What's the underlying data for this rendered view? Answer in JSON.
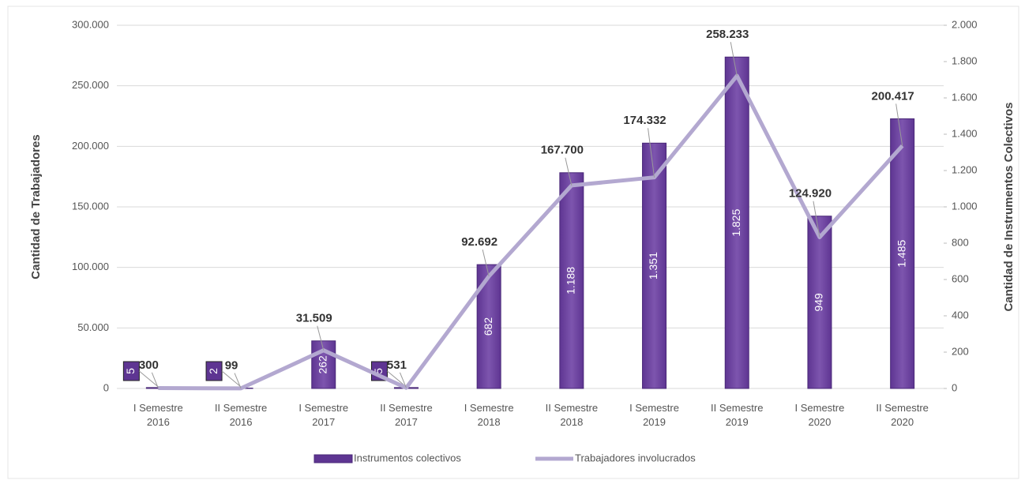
{
  "chart_data": {
    "type": "bar-line",
    "categories": [
      "I Semestre 2016",
      "II Semestre 2016",
      "I Semestre 2017",
      "II Semestre 2017",
      "I Semestre 2018",
      "II Semestre 2018",
      "I Semestre 2019",
      "II Semestre 2019",
      "I Semestre 2020",
      "II Semestre 2020"
    ],
    "series": [
      {
        "name": "Instrumentos colectivos",
        "type": "bar",
        "axis": "y2",
        "color": "#5e3592",
        "values": [
          5,
          2,
          262,
          5,
          682,
          1188,
          1351,
          1825,
          949,
          1485
        ],
        "value_labels": [
          "5",
          "2",
          "262",
          "5",
          "682",
          "1.188",
          "1.351",
          "1.825",
          "949",
          "1.485"
        ]
      },
      {
        "name": "Trabajadores involucrados",
        "type": "line",
        "axis": "y",
        "color": "#b3a8d0",
        "values": [
          300,
          99,
          31509,
          531,
          92692,
          167700,
          174332,
          258233,
          124920,
          200417
        ],
        "value_labels": [
          "300",
          "99",
          "31.509",
          "531",
          "92.692",
          "167.700",
          "174.332",
          "258.233",
          "124.920",
          "200.417"
        ]
      }
    ],
    "ylabel": "Cantidad de Trabajadores",
    "y2label": "Cantidad de Instrumentos Colectivos",
    "ylim": [
      0,
      300000
    ],
    "yticks": [
      0,
      {
        "value": 50000,
        "label": "50.000"
      },
      {
        "value": 100000,
        "label": "100.000"
      },
      {
        "value": 150000,
        "label": "150.000"
      },
      {
        "value": 200000,
        "label": "200.000"
      },
      {
        "value": 250000,
        "label": "250.000"
      },
      {
        "value": 300000,
        "label": "300.000"
      }
    ],
    "y2lim": [
      0,
      2000
    ],
    "y2ticks": [
      0,
      200,
      400,
      600,
      800,
      {
        "value": 1000,
        "label": "1.000"
      },
      {
        "value": 1200,
        "label": "1.200"
      },
      {
        "value": 1400,
        "label": "1.400"
      },
      {
        "value": 1600,
        "label": "1.600"
      },
      {
        "value": 1800,
        "label": "1.800"
      },
      {
        "value": 2000,
        "label": "2.000"
      }
    ],
    "grid": true,
    "legend": "bottom"
  }
}
